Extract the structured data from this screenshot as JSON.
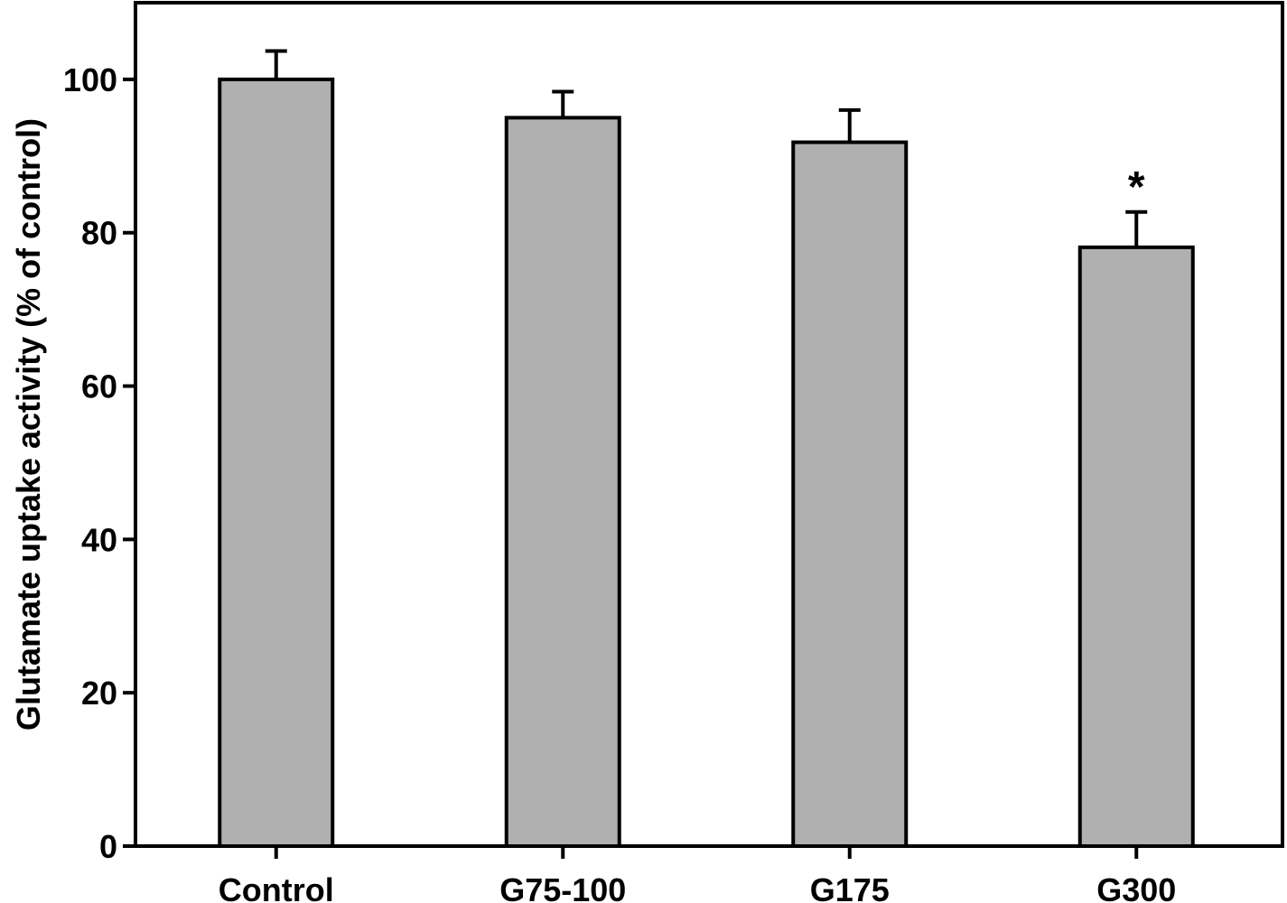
{
  "chart_data": {
    "type": "bar",
    "title": "",
    "xlabel": "",
    "ylabel": "Glutamate uptake activity (% of control)",
    "categories": [
      "Control",
      "G75-100",
      "G175",
      "G300"
    ],
    "values": [
      100,
      95,
      91.8,
      78.1
    ],
    "error_upper": [
      3.7,
      3.4,
      4.2,
      4.6
    ],
    "annotations": [
      "",
      "",
      "",
      "*"
    ],
    "ylim": [
      0,
      110
    ],
    "yticks": [
      0,
      20,
      40,
      60,
      80,
      100
    ],
    "grid": false,
    "legend": "none",
    "colors": {
      "bar_fill": "#b0b0b0",
      "bar_stroke": "#000000",
      "axis": "#000000"
    }
  }
}
